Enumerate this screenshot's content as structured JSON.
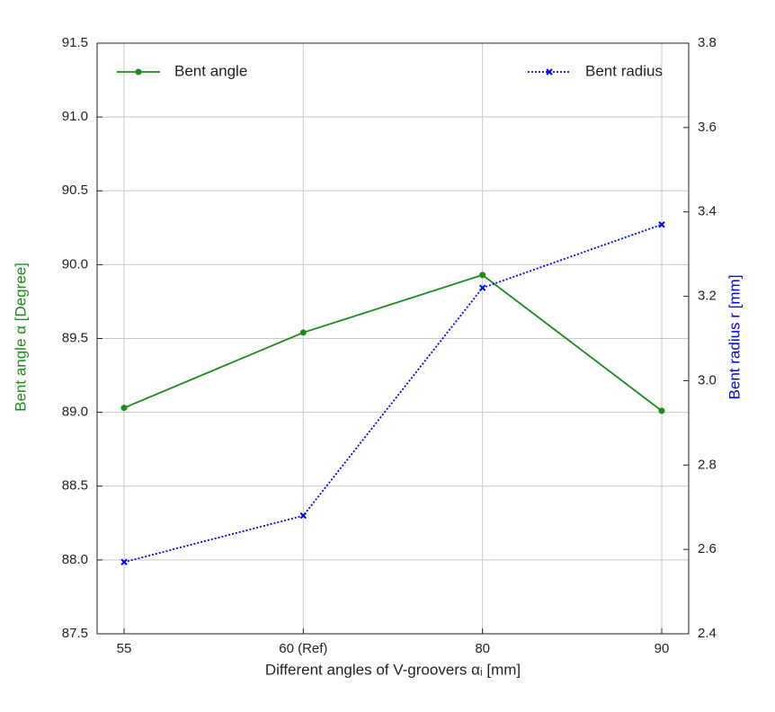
{
  "chart_data": {
    "type": "line",
    "x_label": "Different angles of V-groovers αᵢ [mm]",
    "y_label": "Bent angle α [Degree]",
    "y2_label": "Bent radius r [mm]",
    "y_label_color": "#1a8a1a",
    "y2_label_color": "#0000ff",
    "categories": [
      "55",
      "60 (Ref)",
      "80",
      "90"
    ],
    "series": [
      {
        "name": "Bent angle",
        "color": "#1a8a1a",
        "values": [
          89.03,
          89.54,
          89.93,
          89.01
        ],
        "marker": "circle",
        "linestyle": "solid"
      },
      {
        "name": "Bent radius",
        "color": "#0000ff",
        "values": [
          2.57,
          2.68,
          3.22,
          3.37
        ],
        "marker": "cross",
        "linestyle": "dotted",
        "axis": "y2"
      }
    ],
    "ylim": [
      87.5,
      91.5
    ],
    "yticks": [
      87.5,
      {
        "value": 88,
        "label": "88.0"
      },
      88.5,
      {
        "value": 89,
        "label": "89.0"
      },
      89.5,
      {
        "value": 90,
        "label": "90.0"
      },
      90.5,
      {
        "value": 91,
        "label": "91.0"
      },
      91.5
    ],
    "y2lim": [
      2.4,
      3.8
    ],
    "y2ticks": [
      2.4,
      2.6,
      2.8,
      {
        "value": 3,
        "label": "3.0"
      },
      3.2,
      3.4,
      3.6,
      3.8
    ],
    "grid": true
  }
}
